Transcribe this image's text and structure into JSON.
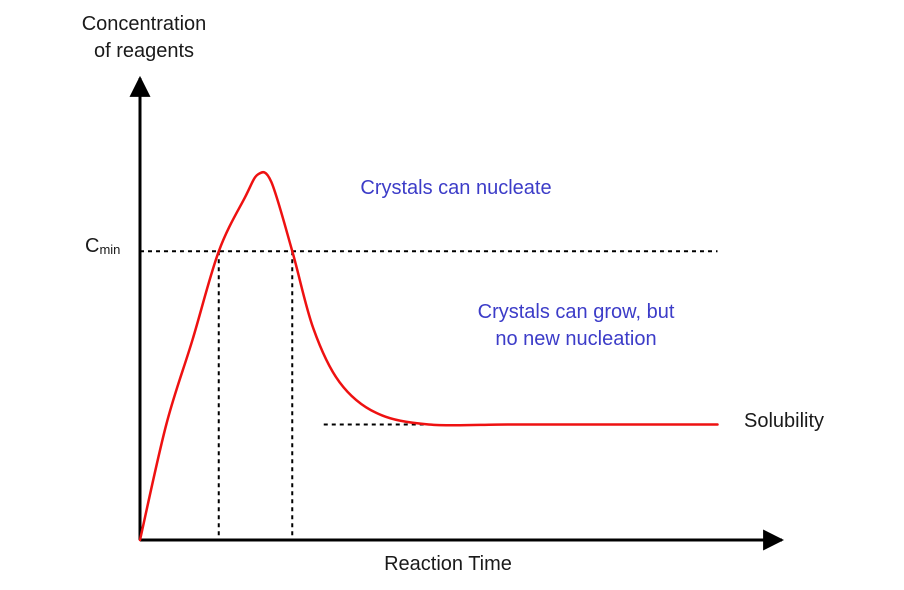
{
  "chart_data": {
    "type": "line",
    "title": "",
    "ylabel_line1": "Concentration",
    "ylabel_line2": "of reagents",
    "xlabel": "Reaction Time",
    "threshold_label": {
      "main": "C",
      "sub": "min"
    },
    "solubility_label": "Solubility",
    "regions": {
      "nucleation": "Crystals can nucleate",
      "growth_line1": "Crystals can grow, but",
      "growth_line2": "no new nucleation"
    },
    "levels": {
      "peak": 0.95,
      "cmin": 0.75,
      "solubility": 0.3
    },
    "crossing_times": [
      0.15,
      0.29
    ],
    "series": [
      {
        "name": "Concentration",
        "color": "#ee1111",
        "points": [
          [
            0.0,
            0.0
          ],
          [
            0.05,
            0.3
          ],
          [
            0.1,
            0.52
          ],
          [
            0.15,
            0.75
          ],
          [
            0.2,
            0.89
          ],
          [
            0.225,
            0.95
          ],
          [
            0.25,
            0.93
          ],
          [
            0.29,
            0.75
          ],
          [
            0.33,
            0.55
          ],
          [
            0.38,
            0.41
          ],
          [
            0.45,
            0.33
          ],
          [
            0.55,
            0.3
          ],
          [
            0.7,
            0.3
          ],
          [
            0.85,
            0.3
          ],
          [
            1.1,
            0.3
          ]
        ]
      }
    ],
    "xlim": [
      0,
      1.2
    ],
    "ylim": [
      0,
      1.2
    ],
    "grid": false,
    "colors": {
      "axis": "#000000",
      "curve": "#ee1111",
      "region_text": "#3c3cc8",
      "guide_lines": "#000000"
    }
  }
}
